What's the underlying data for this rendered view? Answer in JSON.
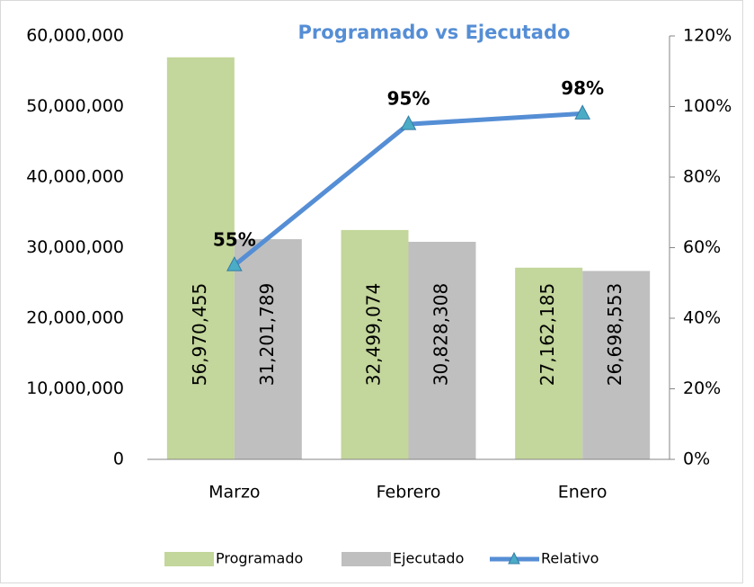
{
  "chart_data": {
    "type": "bar",
    "title": "Programado vs Ejecutado",
    "categories": [
      "Marzo",
      "Febrero",
      "Enero"
    ],
    "series": [
      {
        "name": "Programado",
        "color": "#c3d69b",
        "values": [
          56970455,
          32499074,
          27162185
        ],
        "value_labels": [
          "56,970,455",
          "32,499,074",
          "27,162,185"
        ]
      },
      {
        "name": "Ejecutado",
        "color": "#bfbfbf",
        "values": [
          31201789,
          30828308,
          26698553
        ],
        "value_labels": [
          "31,201,789",
          "30,828,308",
          "26,698,553"
        ]
      },
      {
        "name": "Relativo",
        "type": "line",
        "axis": "y2",
        "color": "#558ed5",
        "marker_color": "#4bacc6",
        "values": [
          55,
          95,
          98
        ],
        "value_labels": [
          "55%",
          "95%",
          "98%"
        ]
      }
    ],
    "ylim": [
      0,
      60000000
    ],
    "yticks": [
      0,
      {
        "value": 10000000,
        "label": "10,000,000"
      },
      {
        "value": 20000000,
        "label": "20,000,000"
      },
      {
        "value": 30000000,
        "label": "30,000,000"
      },
      {
        "value": 40000000,
        "label": "40,000,000"
      },
      {
        "value": 50000000,
        "label": "50,000,000"
      },
      {
        "value": 60000000,
        "label": "60,000,000"
      }
    ],
    "y2lim": [
      0,
      120
    ],
    "y2ticks": [
      {
        "value": 0,
        "label": "0%"
      },
      {
        "value": 20,
        "label": "20%"
      },
      {
        "value": 40,
        "label": "40%"
      },
      {
        "value": 60,
        "label": "60%"
      },
      {
        "value": 80,
        "label": "80%"
      },
      {
        "value": 100,
        "label": "100%"
      },
      {
        "value": 120,
        "label": "120%"
      }
    ],
    "legend": "bottom"
  }
}
